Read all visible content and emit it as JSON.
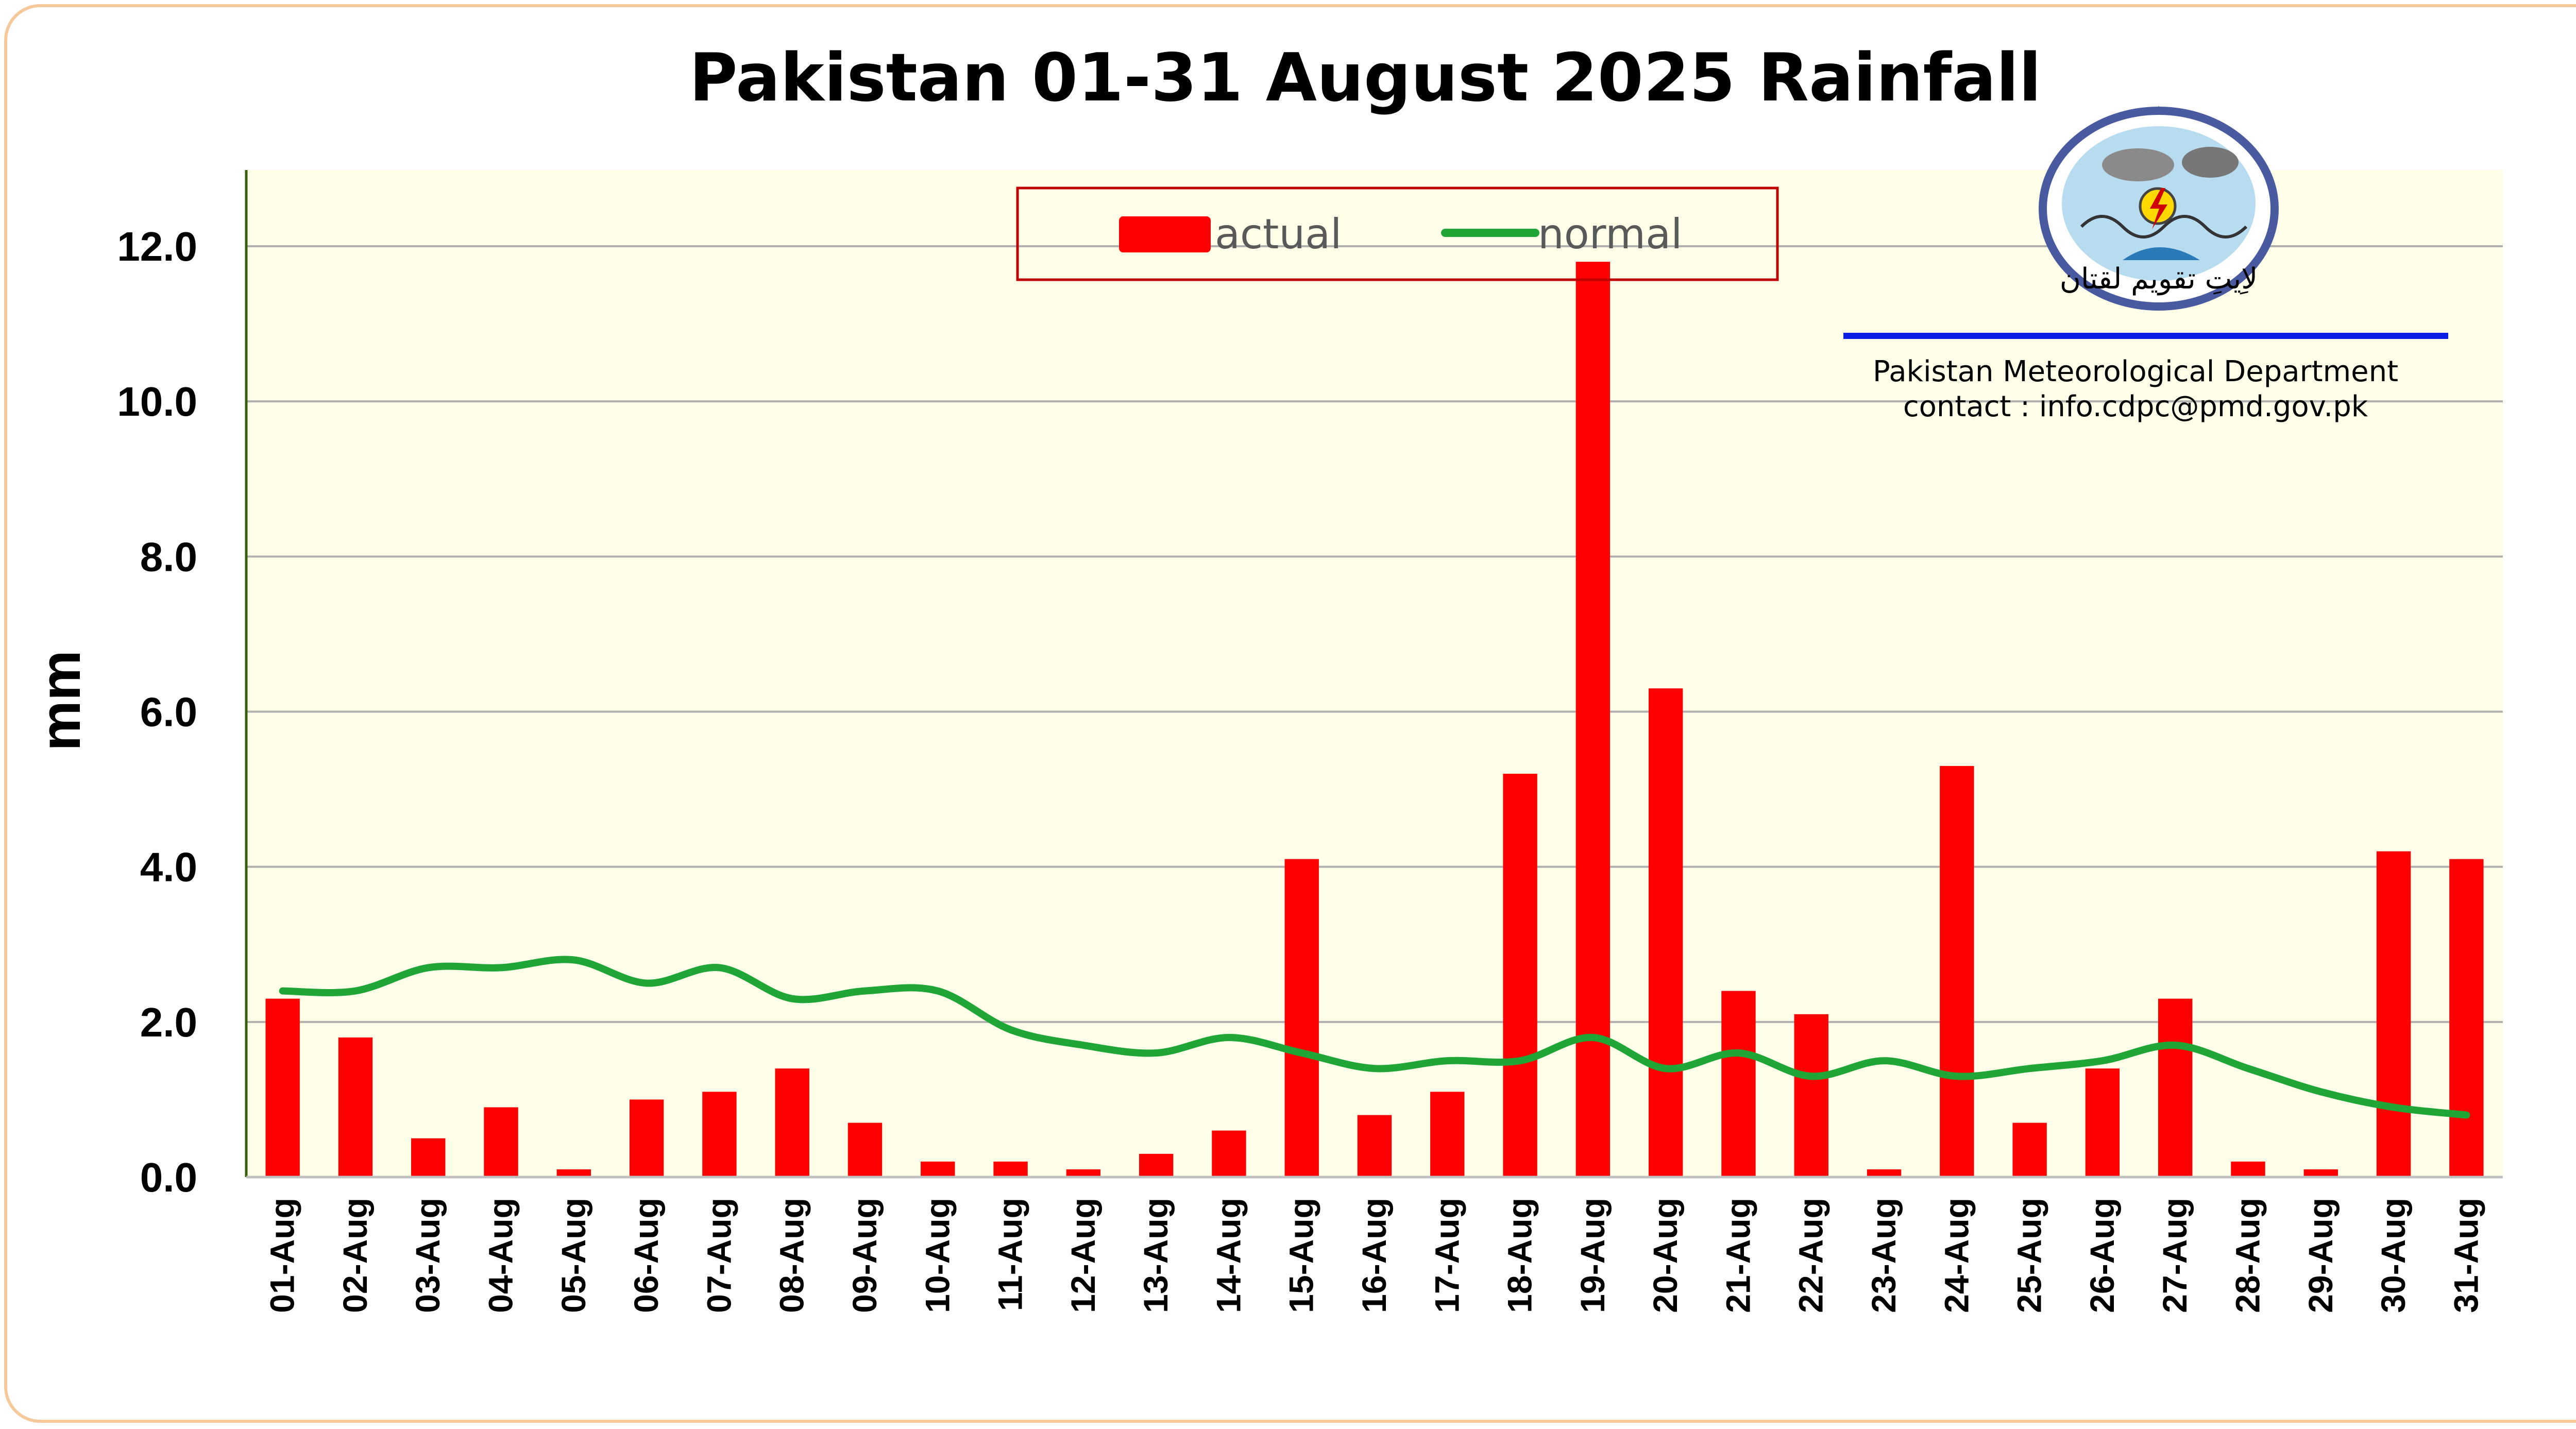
{
  "chart_data": {
    "type": "bar",
    "title": "Pakistan 01-31 August 2025 Rainfall",
    "ylabel": "mm",
    "ylim": [
      0,
      13
    ],
    "yticks": [
      "0.0",
      "2.0",
      "4.0",
      "6.0",
      "8.0",
      "10.0",
      "12.0"
    ],
    "grid": true,
    "legend_position": "top-center",
    "categories": [
      "01-Aug",
      "02-Aug",
      "03-Aug",
      "04-Aug",
      "05-Aug",
      "06-Aug",
      "07-Aug",
      "08-Aug",
      "09-Aug",
      "10-Aug",
      "11-Aug",
      "12-Aug",
      "13-Aug",
      "14-Aug",
      "15-Aug",
      "16-Aug",
      "17-Aug",
      "18-Aug",
      "19-Aug",
      "20-Aug",
      "21-Aug",
      "22-Aug",
      "23-Aug",
      "24-Aug",
      "25-Aug",
      "26-Aug",
      "27-Aug",
      "28-Aug",
      "29-Aug",
      "30-Aug",
      "31-Aug"
    ],
    "series": [
      {
        "name": "actual",
        "type": "bar",
        "color": "#ff0000",
        "values": [
          2.3,
          1.8,
          0.5,
          0.9,
          0.1,
          1.0,
          1.1,
          1.4,
          0.7,
          0.2,
          0.2,
          0.1,
          0.3,
          0.6,
          4.1,
          0.8,
          1.1,
          5.2,
          11.8,
          6.3,
          2.4,
          2.1,
          0.1,
          5.3,
          0.7,
          1.4,
          2.3,
          0.2,
          0.1,
          4.2,
          4.1
        ]
      },
      {
        "name": "normal",
        "type": "line",
        "color": "#1fa637",
        "values": [
          2.4,
          2.4,
          2.7,
          2.7,
          2.8,
          2.5,
          2.7,
          2.3,
          2.4,
          2.4,
          1.9,
          1.7,
          1.6,
          1.8,
          1.6,
          1.4,
          1.5,
          1.5,
          1.8,
          1.4,
          1.6,
          1.3,
          1.5,
          1.3,
          1.4,
          1.5,
          1.7,
          1.4,
          1.1,
          0.9,
          0.8
        ]
      }
    ]
  },
  "org": {
    "name": "Pakistan Meteorological Department",
    "contact": "contact : info.cdpc@pmd.gov.pk",
    "logo_text": "لاِیتِ تقویم لقتان"
  },
  "colors": {
    "plot_background": "#ffffe9",
    "frame_border": "#f6c89a",
    "accent_line": "#0a1ee6",
    "legend_border": "#c00000"
  }
}
